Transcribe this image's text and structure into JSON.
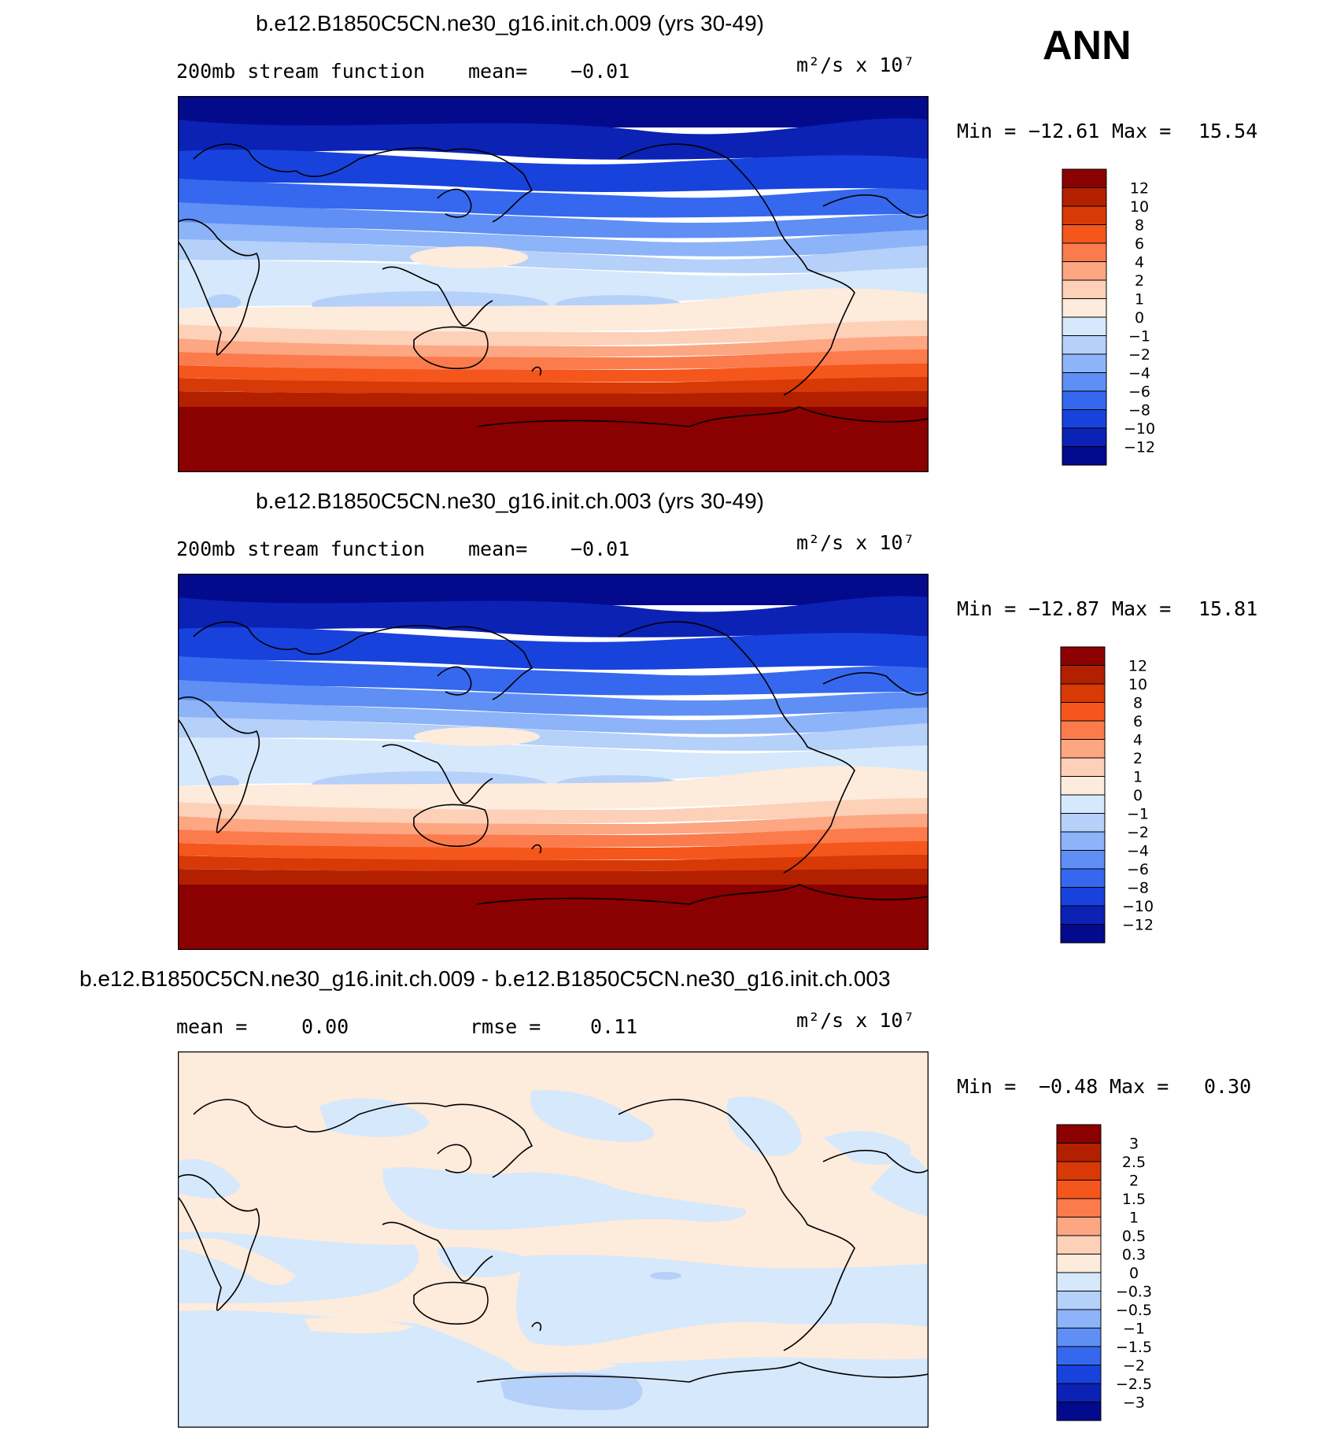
{
  "season": "ANN",
  "panels": [
    {
      "title": "b.e12.B1850C5CN.ne30_g16.init.ch.009 (yrs 30-49)",
      "left_label": "200mb stream function",
      "mean_label": "mean=",
      "mean_value": "−0.01",
      "units": "m²/s x 10⁷",
      "min_label": "Min =",
      "min_value": "−12.61",
      "max_label": "Max =",
      "max_value": "15.54"
    },
    {
      "title": "b.e12.B1850C5CN.ne30_g16.init.ch.003 (yrs 30-49)",
      "left_label": "200mb stream function",
      "mean_label": "mean=",
      "mean_value": "−0.01",
      "units": "m²/s x 10⁷",
      "min_label": "Min =",
      "min_value": "−12.87",
      "max_label": "Max =",
      "max_value": "15.81"
    },
    {
      "title": "b.e12.B1850C5CN.ne30_g16.init.ch.009 - b.e12.B1850C5CN.ne30_g16.init.ch.003",
      "left_label": "mean =",
      "left_value": "0.00",
      "mid_label": "rmse =",
      "mid_value": "0.11",
      "units": "m²/s x 10⁷",
      "min_label": "Min =",
      "min_value": "−0.48",
      "max_label": "Max =",
      "max_value": "0.30"
    }
  ],
  "colorbars": {
    "main_colors": [
      "#8b0000",
      "#b22000",
      "#d73a07",
      "#f4561c",
      "#fb7b4c",
      "#fca682",
      "#fdd0b8",
      "#fdebdc",
      "#d6e8fb",
      "#b5d0f9",
      "#8db4f9",
      "#5f8ff5",
      "#3568ee",
      "#1842dc",
      "#0b22b4",
      "#040a8c"
    ],
    "main_labels": [
      "12",
      "10",
      "8",
      "6",
      "4",
      "2",
      "1",
      "0",
      "−1",
      "−2",
      "−4",
      "−6",
      "−8",
      "−10",
      "−12"
    ],
    "diff_labels": [
      "3",
      "2.5",
      "2",
      "1.5",
      "1",
      "0.5",
      "0.3",
      "0",
      "−0.3",
      "−0.5",
      "−1",
      "−1.5",
      "−2",
      "−2.5",
      "−3"
    ]
  },
  "chart_data": [
    {
      "type": "heatmap",
      "title": "b.e12.B1850C5CN.ne30_g16.init.ch.009 (yrs 30-49)",
      "variable": "200mb stream function",
      "units": "m²/s x 10⁷",
      "mean": -0.01,
      "min": -12.61,
      "max": 15.54,
      "contour_levels": [
        -12,
        -10,
        -8,
        -6,
        -4,
        -2,
        -1,
        0,
        1,
        2,
        4,
        6,
        8,
        10,
        12
      ]
    },
    {
      "type": "heatmap",
      "title": "b.e12.B1850C5CN.ne30_g16.init.ch.003 (yrs 30-49)",
      "variable": "200mb stream function",
      "units": "m²/s x 10⁷",
      "mean": -0.01,
      "min": -12.87,
      "max": 15.81,
      "contour_levels": [
        -12,
        -10,
        -8,
        -6,
        -4,
        -2,
        -1,
        0,
        1,
        2,
        4,
        6,
        8,
        10,
        12
      ]
    },
    {
      "type": "heatmap",
      "title": "b.e12.B1850C5CN.ne30_g16.init.ch.009 - b.e12.B1850C5CN.ne30_g16.init.ch.003",
      "units": "m²/s x 10⁷",
      "mean": 0.0,
      "rmse": 0.11,
      "min": -0.48,
      "max": 0.3,
      "contour_levels": [
        -3,
        -2.5,
        -2,
        -1.5,
        -1,
        -0.5,
        -0.3,
        0,
        0.3,
        0.5,
        1,
        1.5,
        2,
        2.5,
        3
      ]
    }
  ]
}
